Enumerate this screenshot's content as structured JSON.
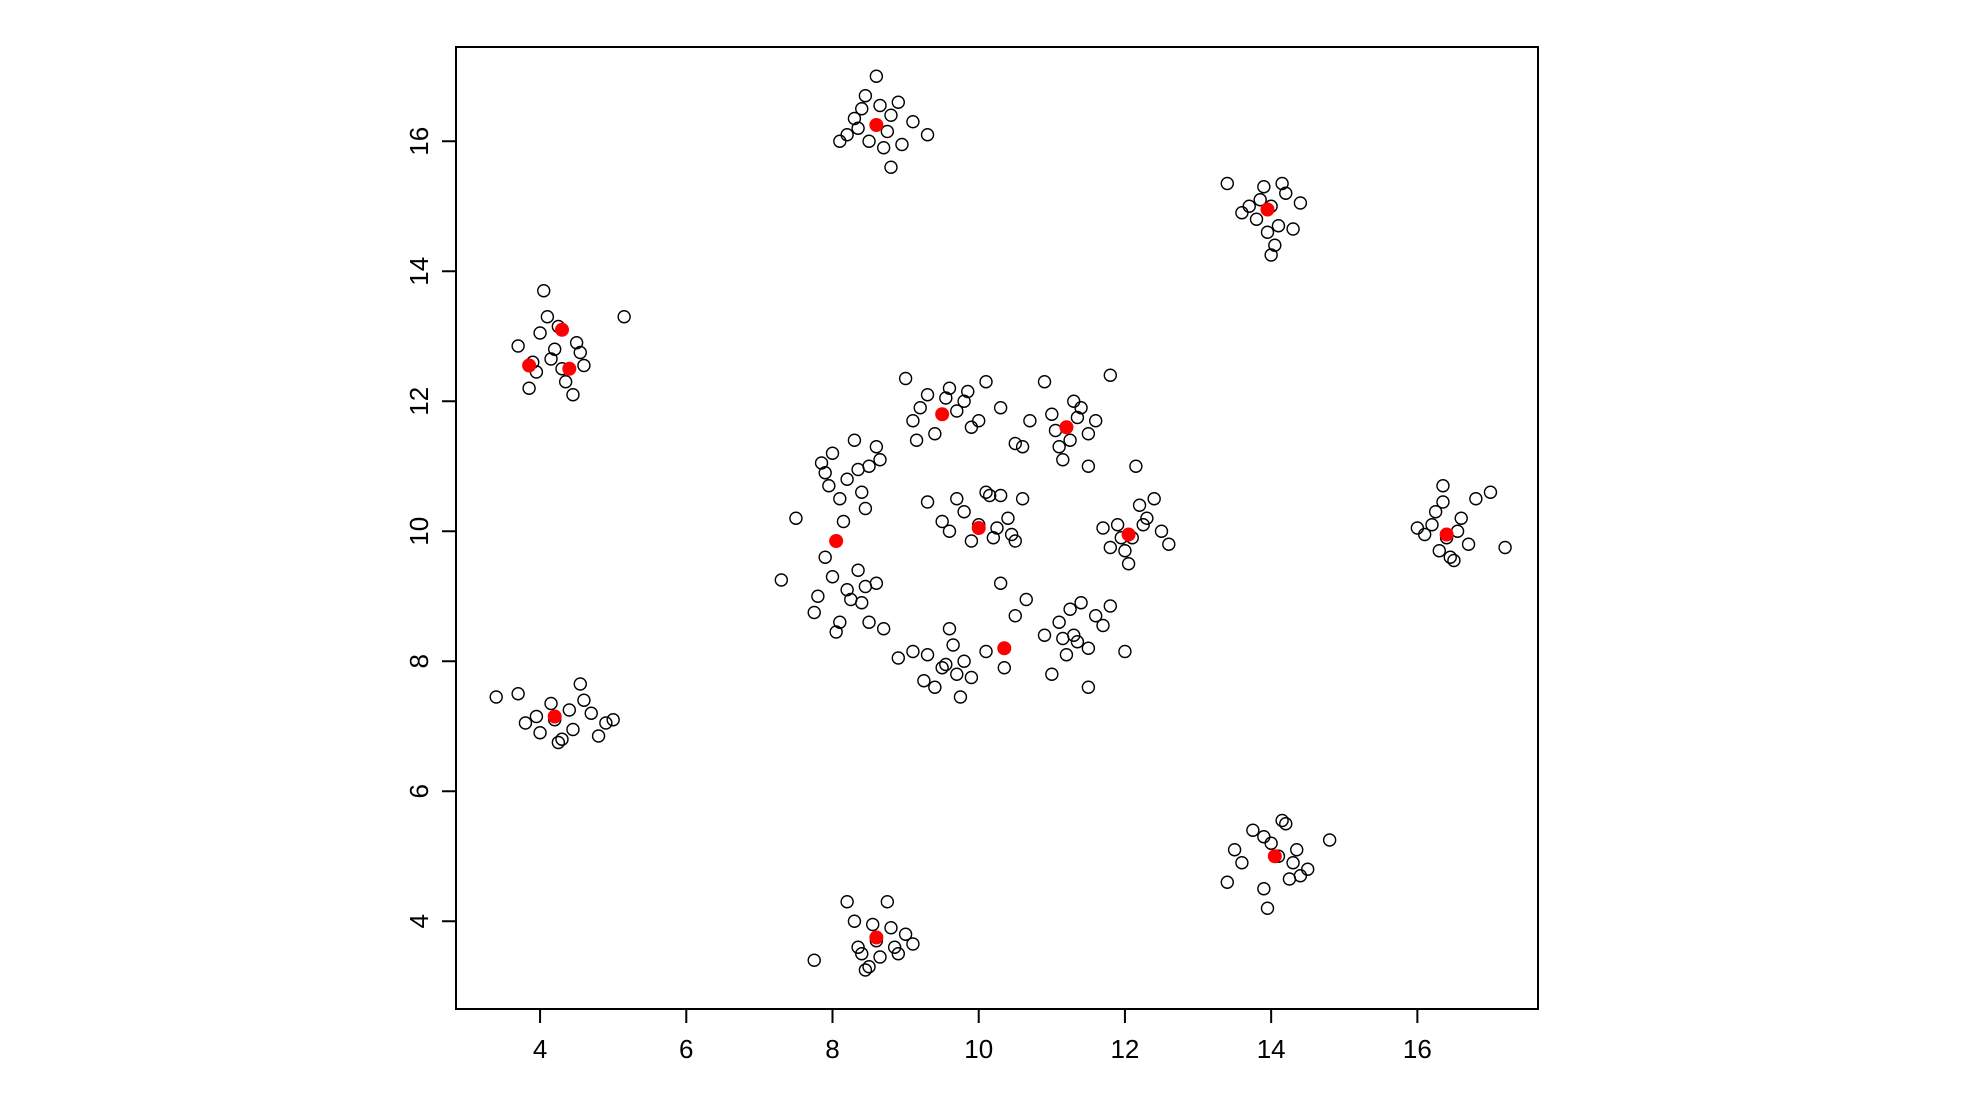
{
  "chart_data": {
    "type": "scatter",
    "title": "",
    "xlabel": "",
    "ylabel": "",
    "xlim": [
      2.85,
      17.65
    ],
    "ylim": [
      2.65,
      17.45
    ],
    "xticks": [
      4,
      6,
      8,
      10,
      12,
      14,
      16
    ],
    "yticks": [
      4,
      6,
      8,
      10,
      12,
      14,
      16
    ],
    "xtick_labels": [
      "4",
      "6",
      "8",
      "10",
      "12",
      "14",
      "16"
    ],
    "ytick_labels": [
      "4",
      "6",
      "8",
      "10",
      "12",
      "14",
      "16"
    ],
    "grid": false,
    "legend": "none",
    "colors": {
      "points": "#000000",
      "centers": "#ff0000",
      "axes": "#000000"
    },
    "series": [
      {
        "role": "data points",
        "marker": "open-circle",
        "points": [
          [
            8.6,
            16.25
          ],
          [
            8.4,
            16.5
          ],
          [
            8.8,
            16.4
          ],
          [
            8.2,
            16.1
          ],
          [
            8.7,
            15.9
          ],
          [
            8.9,
            16.6
          ],
          [
            8.5,
            16.0
          ],
          [
            8.3,
            16.35
          ],
          [
            8.75,
            16.15
          ],
          [
            9.1,
            16.3
          ],
          [
            8.45,
            16.7
          ],
          [
            8.6,
            17.0
          ],
          [
            8.8,
            15.6
          ],
          [
            9.3,
            16.1
          ],
          [
            8.1,
            16.0
          ],
          [
            8.65,
            16.55
          ],
          [
            8.95,
            15.95
          ],
          [
            8.35,
            16.2
          ],
          [
            14.0,
            15.0
          ],
          [
            13.8,
            14.8
          ],
          [
            14.2,
            15.2
          ],
          [
            13.9,
            15.3
          ],
          [
            14.1,
            14.7
          ],
          [
            13.6,
            14.9
          ],
          [
            14.3,
            14.65
          ],
          [
            13.85,
            15.1
          ],
          [
            14.15,
            15.35
          ],
          [
            13.95,
            14.6
          ],
          [
            13.4,
            15.35
          ],
          [
            14.0,
            14.25
          ],
          [
            13.7,
            15.0
          ],
          [
            14.4,
            15.05
          ],
          [
            14.05,
            14.4
          ],
          [
            4.2,
            12.8
          ],
          [
            4.0,
            13.05
          ],
          [
            4.3,
            12.5
          ],
          [
            4.5,
            12.9
          ],
          [
            3.9,
            12.6
          ],
          [
            4.1,
            13.3
          ],
          [
            4.35,
            12.3
          ],
          [
            3.7,
            12.85
          ],
          [
            4.6,
            12.55
          ],
          [
            4.05,
            13.7
          ],
          [
            5.15,
            13.3
          ],
          [
            3.85,
            12.2
          ],
          [
            4.45,
            12.1
          ],
          [
            4.25,
            13.15
          ],
          [
            4.55,
            12.75
          ],
          [
            3.95,
            12.45
          ],
          [
            4.15,
            12.65
          ],
          [
            4.2,
            7.1
          ],
          [
            4.4,
            7.25
          ],
          [
            4.0,
            6.9
          ],
          [
            3.8,
            7.05
          ],
          [
            4.6,
            7.4
          ],
          [
            4.3,
            6.8
          ],
          [
            4.7,
            7.2
          ],
          [
            4.9,
            7.05
          ],
          [
            3.4,
            7.45
          ],
          [
            3.7,
            7.5
          ],
          [
            4.55,
            7.65
          ],
          [
            4.8,
            6.85
          ],
          [
            4.25,
            6.75
          ],
          [
            3.95,
            7.15
          ],
          [
            4.15,
            7.35
          ],
          [
            4.45,
            6.95
          ],
          [
            5.0,
            7.1
          ],
          [
            16.4,
            9.9
          ],
          [
            16.2,
            10.1
          ],
          [
            16.6,
            10.2
          ],
          [
            16.3,
            9.7
          ],
          [
            16.5,
            9.55
          ],
          [
            16.0,
            10.05
          ],
          [
            16.7,
            9.8
          ],
          [
            16.35,
            10.45
          ],
          [
            16.8,
            10.5
          ],
          [
            17.0,
            10.6
          ],
          [
            17.2,
            9.75
          ],
          [
            16.1,
            9.95
          ],
          [
            16.45,
            9.6
          ],
          [
            16.25,
            10.3
          ],
          [
            16.55,
            10.0
          ],
          [
            16.35,
            10.7
          ],
          [
            14.1,
            5.0
          ],
          [
            13.9,
            5.3
          ],
          [
            14.3,
            4.9
          ],
          [
            14.2,
            5.5
          ],
          [
            14.0,
            5.2
          ],
          [
            13.6,
            4.9
          ],
          [
            13.5,
            5.1
          ],
          [
            14.4,
            4.7
          ],
          [
            14.5,
            4.8
          ],
          [
            13.9,
            4.5
          ],
          [
            13.95,
            4.2
          ],
          [
            14.8,
            5.25
          ],
          [
            13.4,
            4.6
          ],
          [
            14.15,
            5.55
          ],
          [
            14.35,
            5.1
          ],
          [
            13.75,
            5.4
          ],
          [
            14.25,
            4.65
          ],
          [
            8.6,
            3.7
          ],
          [
            8.4,
            3.5
          ],
          [
            8.8,
            3.9
          ],
          [
            8.5,
            3.3
          ],
          [
            9.0,
            3.8
          ],
          [
            8.3,
            4.0
          ],
          [
            8.2,
            4.3
          ],
          [
            8.75,
            4.3
          ],
          [
            8.9,
            3.5
          ],
          [
            7.75,
            3.4
          ],
          [
            8.55,
            3.95
          ],
          [
            9.1,
            3.65
          ],
          [
            8.45,
            3.25
          ],
          [
            8.85,
            3.6
          ],
          [
            8.35,
            3.6
          ],
          [
            8.65,
            3.45
          ],
          [
            9.5,
            11.8
          ],
          [
            9.3,
            12.1
          ],
          [
            9.8,
            12.0
          ],
          [
            9.1,
            11.7
          ],
          [
            9.9,
            11.6
          ],
          [
            9.6,
            12.2
          ],
          [
            10.1,
            12.3
          ],
          [
            9.2,
            11.9
          ],
          [
            10.3,
            11.9
          ],
          [
            9.4,
            11.5
          ],
          [
            9.0,
            12.35
          ],
          [
            9.7,
            11.85
          ],
          [
            10.0,
            11.7
          ],
          [
            9.15,
            11.4
          ],
          [
            9.55,
            12.05
          ],
          [
            9.85,
            12.15
          ],
          [
            11.2,
            11.6
          ],
          [
            11.0,
            11.8
          ],
          [
            11.4,
            11.9
          ],
          [
            11.1,
            11.3
          ],
          [
            11.5,
            11.5
          ],
          [
            10.9,
            12.3
          ],
          [
            11.3,
            12.0
          ],
          [
            11.6,
            11.7
          ],
          [
            10.7,
            11.7
          ],
          [
            11.8,
            12.4
          ],
          [
            11.15,
            11.1
          ],
          [
            11.5,
            11.0
          ],
          [
            10.5,
            11.35
          ],
          [
            11.05,
            11.55
          ],
          [
            11.35,
            11.75
          ],
          [
            11.25,
            11.4
          ],
          [
            8.2,
            10.8
          ],
          [
            8.0,
            11.2
          ],
          [
            8.4,
            10.6
          ],
          [
            8.1,
            10.5
          ],
          [
            8.3,
            11.4
          ],
          [
            7.9,
            10.9
          ],
          [
            8.5,
            11.0
          ],
          [
            8.6,
            11.3
          ],
          [
            8.45,
            10.35
          ],
          [
            8.15,
            10.15
          ],
          [
            7.85,
            11.05
          ],
          [
            8.35,
            10.95
          ],
          [
            8.65,
            11.1
          ],
          [
            7.95,
            10.7
          ],
          [
            10.0,
            10.1
          ],
          [
            9.8,
            10.3
          ],
          [
            10.2,
            9.9
          ],
          [
            10.4,
            10.2
          ],
          [
            9.6,
            10.0
          ],
          [
            10.1,
            10.6
          ],
          [
            10.5,
            9.85
          ],
          [
            9.7,
            10.5
          ],
          [
            10.3,
            10.55
          ],
          [
            9.9,
            9.85
          ],
          [
            10.6,
            10.5
          ],
          [
            9.5,
            10.15
          ],
          [
            10.25,
            10.05
          ],
          [
            10.45,
            9.95
          ],
          [
            12.1,
            9.9
          ],
          [
            11.9,
            10.1
          ],
          [
            12.3,
            10.2
          ],
          [
            12.0,
            9.7
          ],
          [
            12.5,
            10.0
          ],
          [
            11.7,
            10.05
          ],
          [
            12.2,
            10.4
          ],
          [
            12.6,
            9.8
          ],
          [
            12.05,
            9.5
          ],
          [
            12.4,
            10.5
          ],
          [
            11.8,
            9.75
          ],
          [
            12.15,
            11.0
          ],
          [
            12.25,
            10.1
          ],
          [
            11.95,
            9.9
          ],
          [
            8.2,
            9.1
          ],
          [
            8.0,
            9.3
          ],
          [
            8.4,
            8.9
          ],
          [
            8.1,
            8.6
          ],
          [
            8.6,
            9.2
          ],
          [
            7.8,
            9.0
          ],
          [
            8.5,
            8.6
          ],
          [
            8.35,
            9.4
          ],
          [
            7.9,
            9.6
          ],
          [
            7.5,
            10.2
          ],
          [
            7.3,
            9.25
          ],
          [
            8.05,
            8.45
          ],
          [
            8.7,
            8.5
          ],
          [
            7.75,
            8.75
          ],
          [
            8.25,
            8.95
          ],
          [
            8.45,
            9.15
          ],
          [
            9.5,
            7.9
          ],
          [
            9.3,
            8.1
          ],
          [
            9.7,
            7.8
          ],
          [
            9.4,
            7.6
          ],
          [
            9.8,
            8.0
          ],
          [
            9.1,
            8.15
          ],
          [
            9.6,
            8.5
          ],
          [
            9.9,
            7.75
          ],
          [
            9.75,
            7.45
          ],
          [
            8.9,
            8.05
          ],
          [
            9.55,
            7.95
          ],
          [
            9.25,
            7.7
          ],
          [
            9.65,
            8.25
          ],
          [
            10.1,
            8.15
          ],
          [
            11.3,
            8.4
          ],
          [
            11.1,
            8.6
          ],
          [
            11.5,
            8.2
          ],
          [
            11.2,
            8.1
          ],
          [
            11.6,
            8.7
          ],
          [
            10.9,
            8.4
          ],
          [
            11.4,
            8.9
          ],
          [
            11.7,
            8.55
          ],
          [
            11.25,
            8.8
          ],
          [
            11.5,
            7.6
          ],
          [
            11.0,
            7.8
          ],
          [
            12.0,
            8.15
          ],
          [
            11.8,
            8.85
          ],
          [
            11.35,
            8.3
          ],
          [
            11.15,
            8.35
          ],
          [
            10.35,
            7.9
          ],
          [
            10.3,
            9.2
          ],
          [
            10.65,
            8.95
          ],
          [
            10.5,
            8.7
          ],
          [
            10.15,
            10.55
          ],
          [
            9.3,
            10.45
          ],
          [
            10.6,
            11.3
          ]
        ]
      },
      {
        "role": "centers",
        "marker": "filled-circle",
        "points": [
          [
            8.6,
            16.25
          ],
          [
            13.95,
            14.95
          ],
          [
            4.3,
            13.1
          ],
          [
            3.85,
            12.55
          ],
          [
            4.4,
            12.5
          ],
          [
            4.2,
            7.15
          ],
          [
            16.4,
            9.95
          ],
          [
            14.05,
            5.0
          ],
          [
            8.6,
            3.75
          ],
          [
            9.5,
            11.8
          ],
          [
            11.2,
            11.6
          ],
          [
            10.0,
            10.05
          ],
          [
            8.05,
            9.85
          ],
          [
            12.05,
            9.95
          ],
          [
            10.35,
            8.2
          ]
        ]
      }
    ]
  }
}
